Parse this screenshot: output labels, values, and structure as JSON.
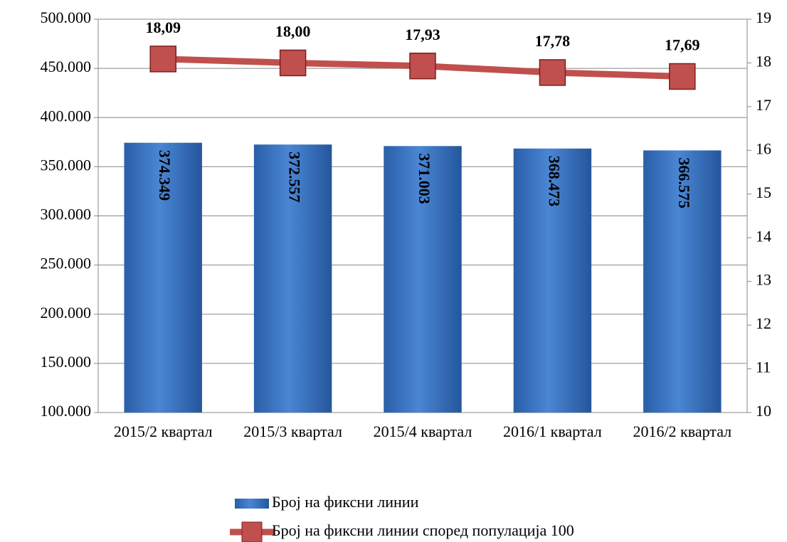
{
  "chart_data": {
    "type": "bar-line",
    "categories": [
      "2015/2 квартал",
      "2015/3 квартал",
      "2015/4 квартал",
      "2016/1 квартал",
      "2016/2 квартал"
    ],
    "series": [
      {
        "name": "Број на фиксни линии",
        "type": "bar",
        "color": "#3b74c2",
        "values": [
          374349,
          372557,
          371003,
          368473,
          366575
        ],
        "value_labels": [
          "374.349",
          "372.557",
          "371.003",
          "368.473",
          "366.575"
        ]
      },
      {
        "name": "Број на фиксни линии според популација 100",
        "type": "line",
        "axis": "y2",
        "color": "#c0504d",
        "values": [
          18.09,
          18.0,
          17.93,
          17.78,
          17.69
        ],
        "value_labels": [
          "18,09",
          "18,00",
          "17,93",
          "17,78",
          "17,69"
        ]
      }
    ],
    "ylim": [
      100000,
      500000
    ],
    "yticks": [
      {
        "value": 100000,
        "label": "100.000"
      },
      {
        "value": 150000,
        "label": "150.000"
      },
      {
        "value": 200000,
        "label": "200.000"
      },
      {
        "value": 250000,
        "label": "250.000"
      },
      {
        "value": 300000,
        "label": "300.000"
      },
      {
        "value": 350000,
        "label": "350.000"
      },
      {
        "value": 400000,
        "label": "400.000"
      },
      {
        "value": 450000,
        "label": "450.000"
      },
      {
        "value": 500000,
        "label": "500.000"
      }
    ],
    "y2lim": [
      10,
      19
    ],
    "y2ticks": [
      10,
      11,
      12,
      13,
      14,
      15,
      16,
      17,
      18,
      19
    ],
    "grid": true,
    "legend": "bottom"
  }
}
